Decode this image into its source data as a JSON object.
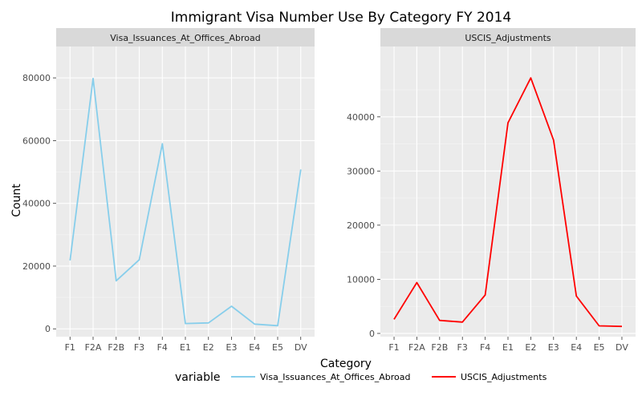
{
  "chart_data": {
    "type": "line",
    "title": "Immigrant Visa Number Use By Category FY 2014",
    "xlabel": "Category",
    "ylabel": "Count",
    "categories": [
      "F1",
      "F2A",
      "F2B",
      "F3",
      "F4",
      "E1",
      "E2",
      "E3",
      "E4",
      "E5",
      "DV"
    ],
    "legend": {
      "title": "variable",
      "position": "bottom"
    },
    "panels": [
      {
        "strip": "Visa_Issuances_At_Offices_Abroad",
        "ylim": [
          -2500,
          90000
        ],
        "yticks": [
          0,
          20000,
          40000,
          60000,
          80000
        ],
        "series": [
          {
            "name": "Visa_Issuances_At_Offices_Abroad",
            "color": "#87ceeb",
            "values": [
              21800,
              79800,
              15300,
              22000,
              59000,
              1700,
              1900,
              7200,
              1500,
              1000,
              50800
            ]
          }
        ]
      },
      {
        "strip": "USCIS_Adjustments",
        "ylim": [
          -600,
          53000
        ],
        "yticks": [
          0,
          10000,
          20000,
          30000,
          40000
        ],
        "series": [
          {
            "name": "USCIS_Adjustments",
            "color": "#ff0000",
            "values": [
              2600,
              9400,
              2400,
              2100,
              7100,
              38900,
              47200,
              35700,
              6900,
              1400,
              1300
            ]
          }
        ]
      }
    ]
  }
}
